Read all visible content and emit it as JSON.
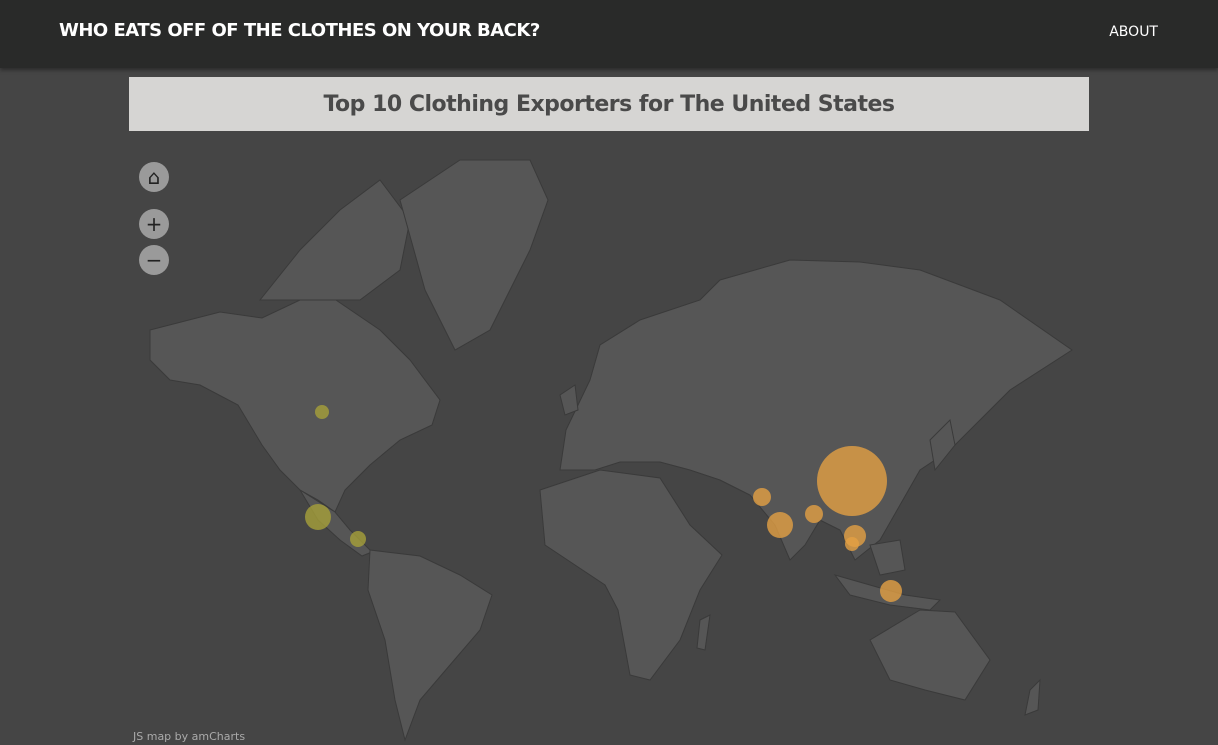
{
  "header": {
    "title": "WHO EATS OFF OF THE CLOTHES ON YOUR BACK?",
    "about_label": "ABOUT"
  },
  "map": {
    "title": "Top 10 Clothing Exporters for The United States",
    "credit": "JS map by amCharts",
    "controls": {
      "home": "⌂",
      "zoom_in": "+",
      "zoom_out": "−"
    },
    "colors": {
      "land": "#565656",
      "border": "#3a3a3a",
      "asia_bubble": "#e3a043",
      "americas_bubble": "#a6a03a",
      "background": "#454545"
    }
  }
}
